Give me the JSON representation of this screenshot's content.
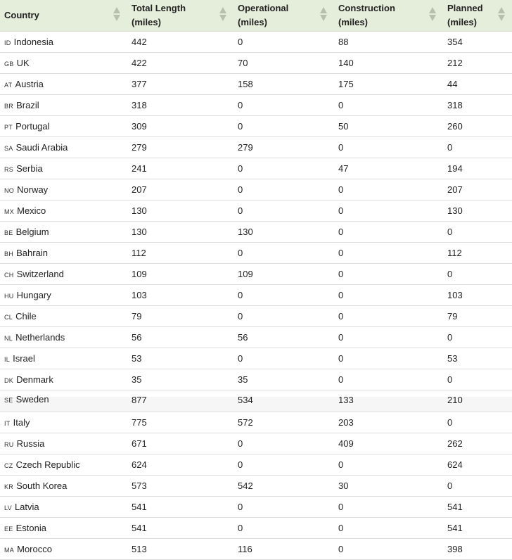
{
  "columns": [
    "Country",
    "Total Length (miles)",
    "Operational (miles)",
    "Construction (miles)",
    "Planned (miles)"
  ],
  "header": {
    "country": "Country",
    "total": [
      "Total Length",
      "(miles)"
    ],
    "operational": [
      "Operational",
      "(miles)"
    ],
    "construction": [
      "Construction",
      "(miles)"
    ],
    "planned": [
      "Planned",
      "(miles)"
    ]
  },
  "rows": [
    {
      "code": "ID",
      "country": "Indonesia",
      "total": "442",
      "operational": "0",
      "construction": "88",
      "planned": "354"
    },
    {
      "code": "GB",
      "country": "UK",
      "total": "422",
      "operational": "70",
      "construction": "140",
      "planned": "212"
    },
    {
      "code": "AT",
      "country": "Austria",
      "total": "377",
      "operational": "158",
      "construction": "175",
      "planned": "44"
    },
    {
      "code": "BR",
      "country": "Brazil",
      "total": "318",
      "operational": "0",
      "construction": "0",
      "planned": "318"
    },
    {
      "code": "PT",
      "country": "Portugal",
      "total": "309",
      "operational": "0",
      "construction": "50",
      "planned": "260"
    },
    {
      "code": "SA",
      "country": "Saudi Arabia",
      "total": "279",
      "operational": "279",
      "construction": "0",
      "planned": "0"
    },
    {
      "code": "RS",
      "country": "Serbia",
      "total": "241",
      "operational": "0",
      "construction": "47",
      "planned": "194"
    },
    {
      "code": "NO",
      "country": "Norway",
      "total": "207",
      "operational": "0",
      "construction": "0",
      "planned": "207"
    },
    {
      "code": "MX",
      "country": "Mexico",
      "total": "130",
      "operational": "0",
      "construction": "0",
      "planned": "130"
    },
    {
      "code": "BE",
      "country": "Belgium",
      "total": "130",
      "operational": "130",
      "construction": "0",
      "planned": "0"
    },
    {
      "code": "BH",
      "country": "Bahrain",
      "total": "112",
      "operational": "0",
      "construction": "0",
      "planned": "112"
    },
    {
      "code": "CH",
      "country": "Switzerland",
      "total": "109",
      "operational": "109",
      "construction": "0",
      "planned": "0"
    },
    {
      "code": "HU",
      "country": "Hungary",
      "total": "103",
      "operational": "0",
      "construction": "0",
      "planned": "103"
    },
    {
      "code": "CL",
      "country": "Chile",
      "total": "79",
      "operational": "0",
      "construction": "0",
      "planned": "79"
    },
    {
      "code": "NL",
      "country": "Netherlands",
      "total": "56",
      "operational": "56",
      "construction": "0",
      "planned": "0"
    },
    {
      "code": "IL",
      "country": "Israel",
      "total": "53",
      "operational": "0",
      "construction": "0",
      "planned": "53"
    },
    {
      "code": "DK",
      "country": "Denmark",
      "total": "35",
      "operational": "35",
      "construction": "0",
      "planned": "0"
    }
  ],
  "rows2": [
    {
      "code": "SE",
      "country": "Sweden",
      "total": "877",
      "operational": "534",
      "construction": "133",
      "planned": "210"
    },
    {
      "code": "IT",
      "country": "Italy",
      "total": "775",
      "operational": "572",
      "construction": "203",
      "planned": "0"
    },
    {
      "code": "RU",
      "country": "Russia",
      "total": "671",
      "operational": "0",
      "construction": "409",
      "planned": "262"
    },
    {
      "code": "CZ",
      "country": "Czech Republic",
      "total": "624",
      "operational": "0",
      "construction": "0",
      "planned": "624"
    },
    {
      "code": "KR",
      "country": "South Korea",
      "total": "573",
      "operational": "542",
      "construction": "30",
      "planned": "0"
    },
    {
      "code": "LV",
      "country": "Latvia",
      "total": "541",
      "operational": "0",
      "construction": "0",
      "planned": "541"
    },
    {
      "code": "EE",
      "country": "Estonia",
      "total": "541",
      "operational": "0",
      "construction": "0",
      "planned": "541"
    },
    {
      "code": "MA",
      "country": "Morocco",
      "total": "513",
      "operational": "116",
      "construction": "0",
      "planned": "398"
    }
  ],
  "colors": {
    "header_bg": "#e5eedb",
    "sort_icon": "#b6c0ad",
    "row_border": "#dddddd"
  }
}
